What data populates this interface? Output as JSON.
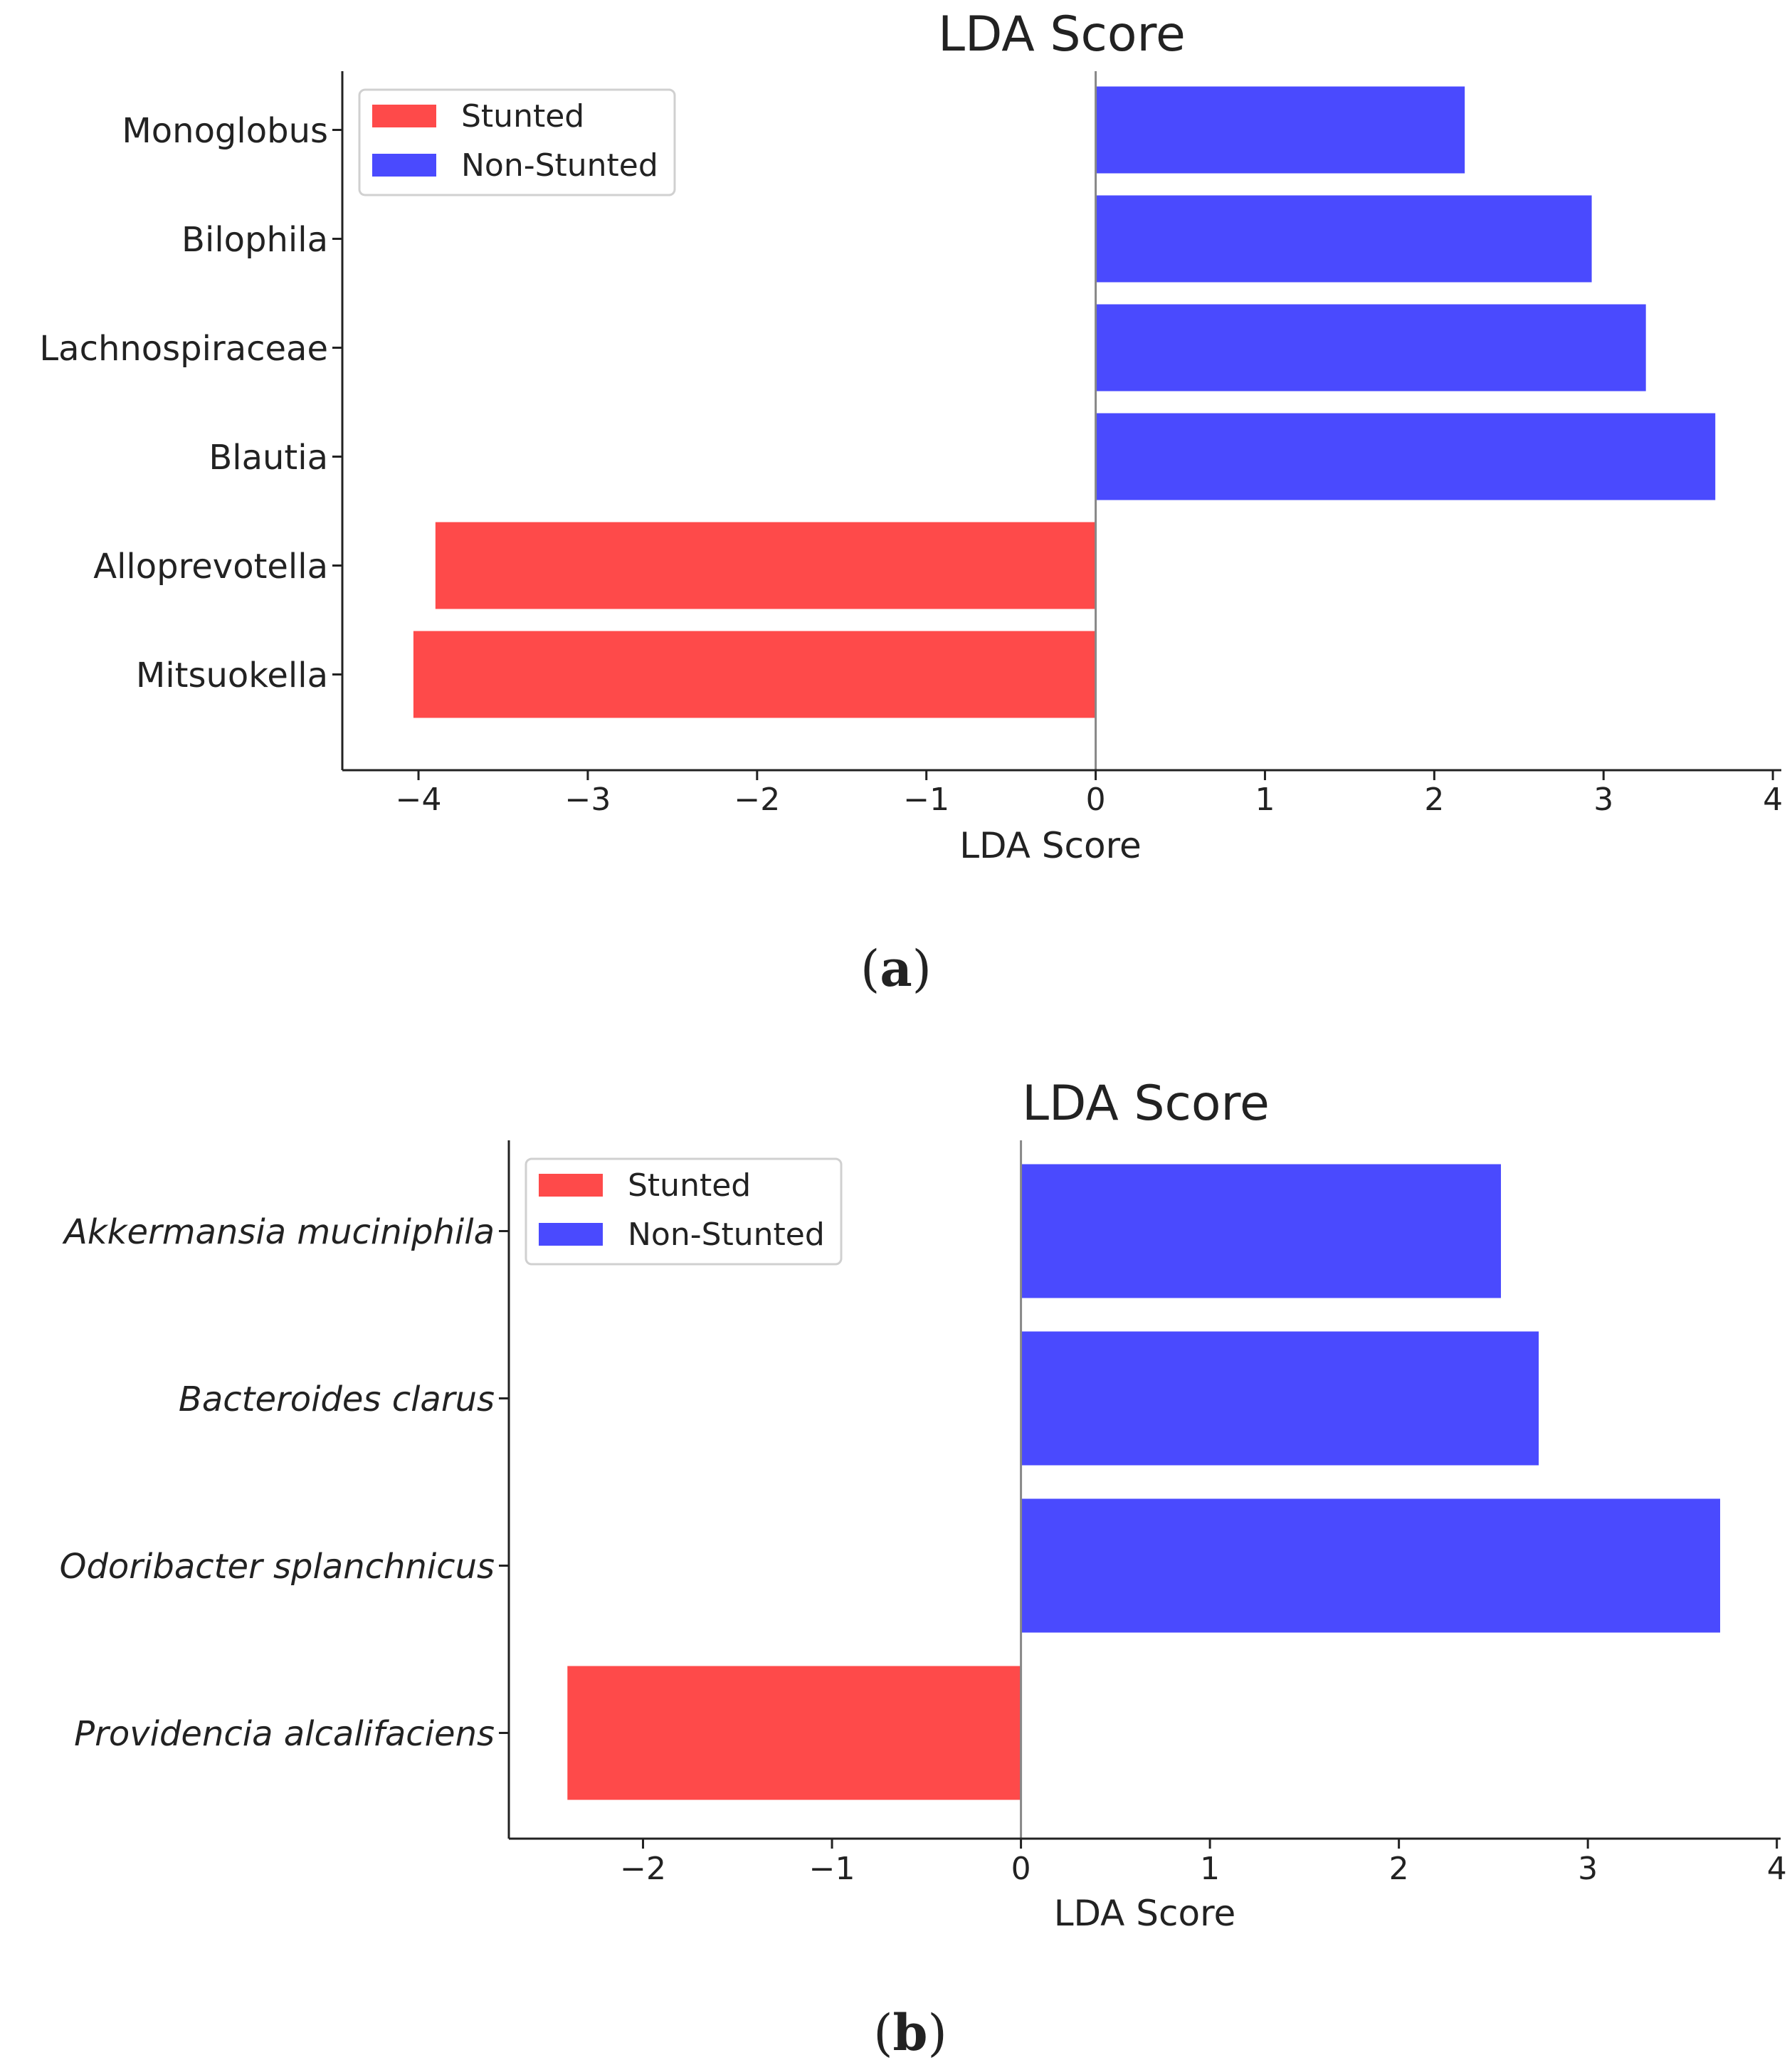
{
  "chart_data": [
    {
      "type": "bar",
      "orientation": "horizontal",
      "panel_label": "a",
      "title": "LDA Score",
      "xlabel": "LDA Score",
      "categories": [
        "Monoglobus",
        "Bilophila",
        "Lachnospiraceae",
        "Blautia",
        "Alloprevotella",
        "Mitsuokella"
      ],
      "series": [
        {
          "name": "Stunted",
          "values": [
            0,
            0,
            0,
            0,
            -3.9,
            -4.03
          ]
        },
        {
          "name": "Non-Stunted",
          "values": [
            2.18,
            2.93,
            3.25,
            3.66,
            0,
            0
          ]
        }
      ],
      "xlim": [
        -4.45,
        4.05
      ],
      "xticks": [
        -4,
        -3,
        -2,
        -1,
        0,
        1,
        2,
        3,
        4
      ],
      "xtick_labels": [
        "−4",
        "−3",
        "−2",
        "−1",
        "0",
        "1",
        "2",
        "3",
        "4"
      ],
      "italic_labels": false,
      "legend": "top-left",
      "grid": false
    },
    {
      "type": "bar",
      "orientation": "horizontal",
      "panel_label": "b",
      "title": "LDA Score",
      "xlabel": "LDA Score",
      "categories": [
        "Akkermansia muciniphila",
        "Bacteroides clarus",
        "Odoribacter splanchnicus",
        "Providencia alcalifaciens"
      ],
      "series": [
        {
          "name": "Stunted",
          "values": [
            0,
            0,
            0,
            -2.4
          ]
        },
        {
          "name": "Non-Stunted",
          "values": [
            2.54,
            2.74,
            3.7,
            0
          ]
        }
      ],
      "xlim": [
        -2.71,
        4.02
      ],
      "xticks": [
        -2,
        -1,
        0,
        1,
        2,
        3,
        4
      ],
      "xtick_labels": [
        "−2",
        "−1",
        "0",
        "1",
        "2",
        "3",
        "4"
      ],
      "italic_labels": true,
      "legend": "top-left",
      "grid": false
    }
  ],
  "colors": {
    "stunted": "#fe4a4a",
    "non_stunted": "#4a4afe",
    "axis": "#222222",
    "zero_line": "#888888"
  }
}
